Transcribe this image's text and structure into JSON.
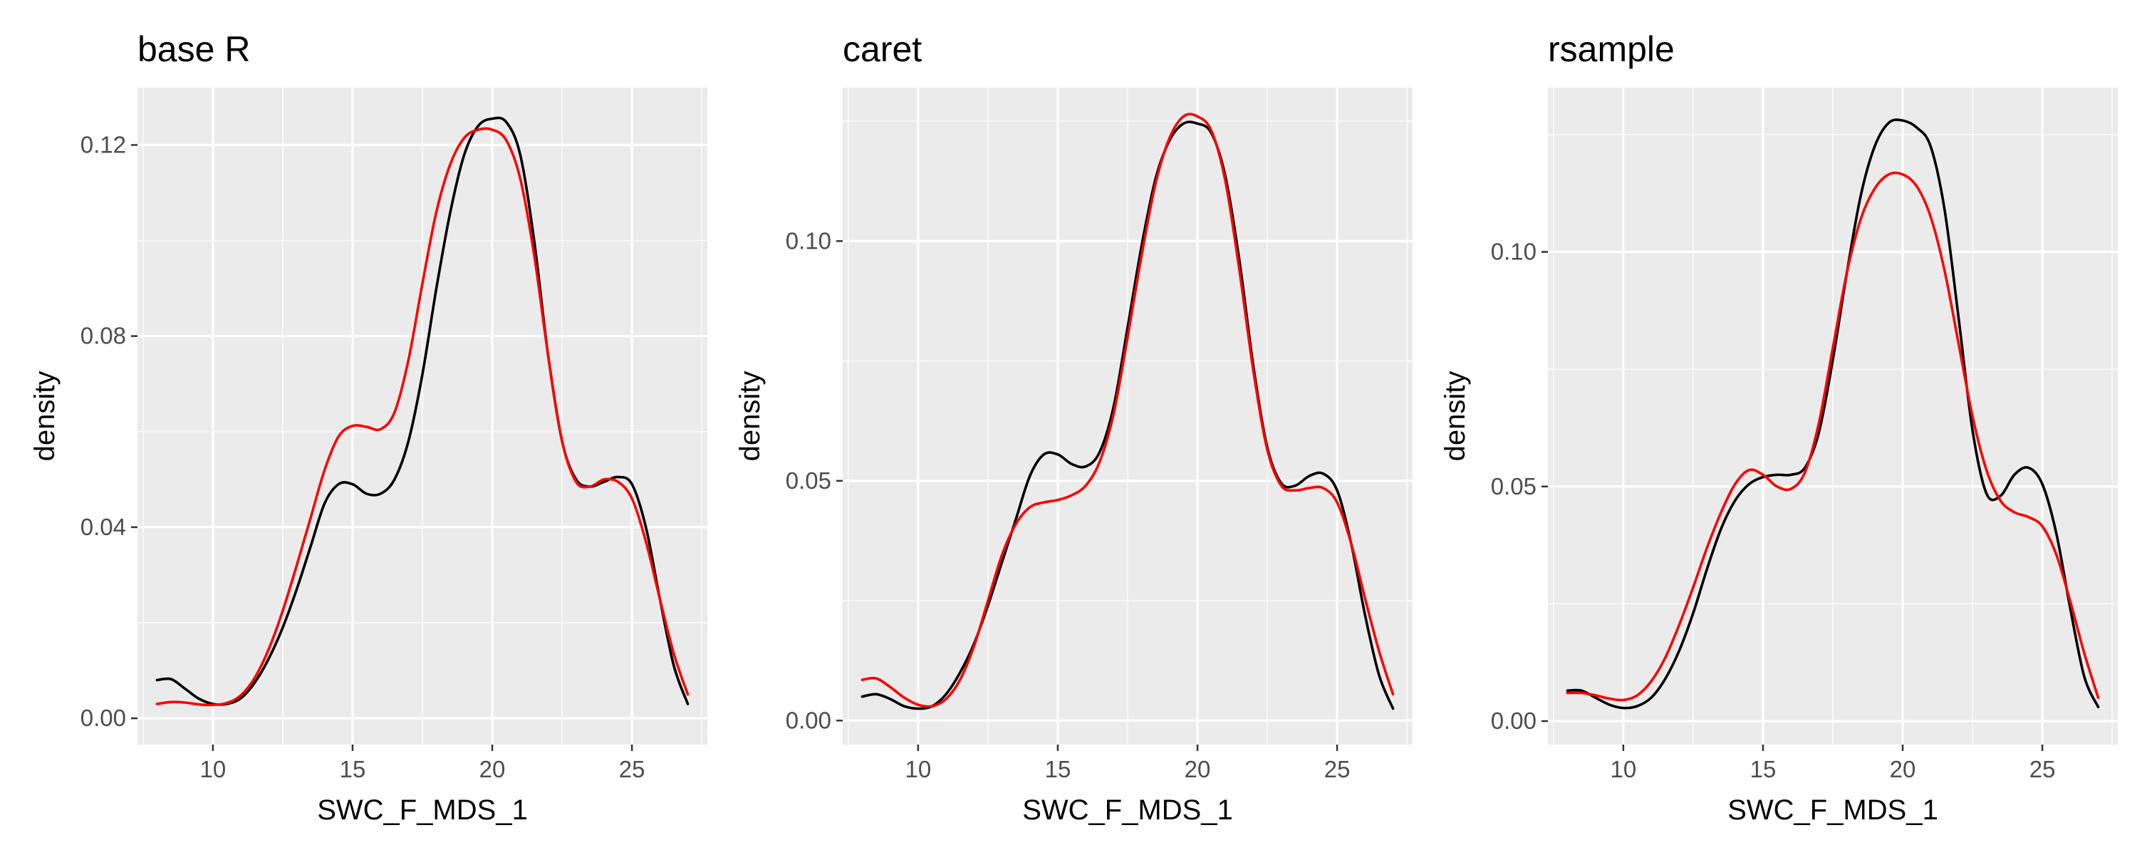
{
  "colors": {
    "panel_bg": "#ebebeb",
    "grid": "#ffffff",
    "series_a": "#000000",
    "series_b": "#ff0000"
  },
  "chart_data": [
    {
      "type": "line",
      "title": "base R",
      "xlabel": "SWC_F_MDS_1",
      "ylabel": "density",
      "xlim": [
        7.3,
        27.7
      ],
      "ylim": [
        -0.0055,
        0.132
      ],
      "x_ticks": [
        10,
        15,
        20,
        25
      ],
      "x_tick_labels": [
        "10",
        "15",
        "20",
        "25"
      ],
      "y_ticks": [
        0,
        0.04,
        0.08,
        0.12
      ],
      "y_tick_labels": [
        "0.00",
        "0.04",
        "0.08",
        "0.12"
      ],
      "grid": true,
      "legend": "none",
      "series": [
        {
          "color": "#000000",
          "points": [
            [
              8,
              0.008
            ],
            [
              8.5,
              0.0082
            ],
            [
              9,
              0.0062
            ],
            [
              9.5,
              0.0041
            ],
            [
              10,
              0.003
            ],
            [
              10.5,
              0.003
            ],
            [
              11,
              0.0042
            ],
            [
              11.5,
              0.0075
            ],
            [
              12,
              0.0125
            ],
            [
              12.5,
              0.019
            ],
            [
              13,
              0.027
            ],
            [
              13.5,
              0.036
            ],
            [
              14,
              0.045
            ],
            [
              14.5,
              0.049
            ],
            [
              15,
              0.049
            ],
            [
              15.5,
              0.047
            ],
            [
              16,
              0.047
            ],
            [
              16.5,
              0.05
            ],
            [
              17,
              0.058
            ],
            [
              17.5,
              0.072
            ],
            [
              18,
              0.09
            ],
            [
              18.5,
              0.106
            ],
            [
              19,
              0.118
            ],
            [
              19.5,
              0.124
            ],
            [
              20,
              0.1255
            ],
            [
              20.5,
              0.1248
            ],
            [
              21,
              0.118
            ],
            [
              21.5,
              0.1
            ],
            [
              22,
              0.076
            ],
            [
              22.5,
              0.058
            ],
            [
              23,
              0.05
            ],
            [
              23.5,
              0.0485
            ],
            [
              24,
              0.0495
            ],
            [
              24.5,
              0.0505
            ],
            [
              25,
              0.049
            ],
            [
              25.5,
              0.04
            ],
            [
              26,
              0.025
            ],
            [
              26.5,
              0.011
            ],
            [
              27,
              0.003
            ]
          ]
        },
        {
          "color": "#ff0000",
          "points": [
            [
              8,
              0.003
            ],
            [
              8.5,
              0.0034
            ],
            [
              9,
              0.0033
            ],
            [
              9.5,
              0.0029
            ],
            [
              10,
              0.0028
            ],
            [
              10.5,
              0.0032
            ],
            [
              11,
              0.0048
            ],
            [
              11.5,
              0.0085
            ],
            [
              12,
              0.0145
            ],
            [
              12.5,
              0.0225
            ],
            [
              13,
              0.032
            ],
            [
              13.5,
              0.042
            ],
            [
              14,
              0.052
            ],
            [
              14.5,
              0.059
            ],
            [
              15,
              0.0612
            ],
            [
              15.5,
              0.061
            ],
            [
              16,
              0.0605
            ],
            [
              16.5,
              0.064
            ],
            [
              17,
              0.075
            ],
            [
              17.5,
              0.091
            ],
            [
              18,
              0.106
            ],
            [
              18.5,
              0.116
            ],
            [
              19,
              0.1215
            ],
            [
              19.5,
              0.1232
            ],
            [
              20,
              0.1232
            ],
            [
              20.5,
              0.121
            ],
            [
              21,
              0.113
            ],
            [
              21.5,
              0.097
            ],
            [
              22,
              0.076
            ],
            [
              22.5,
              0.058
            ],
            [
              23,
              0.0495
            ],
            [
              23.5,
              0.0485
            ],
            [
              24,
              0.05
            ],
            [
              24.5,
              0.0495
            ],
            [
              25,
              0.046
            ],
            [
              25.5,
              0.037
            ],
            [
              26,
              0.025
            ],
            [
              26.5,
              0.0135
            ],
            [
              27,
              0.005
            ]
          ]
        }
      ]
    },
    {
      "type": "line",
      "title": "caret",
      "xlabel": "SWC_F_MDS_1",
      "ylabel": "density",
      "xlim": [
        7.3,
        27.7
      ],
      "ylim": [
        -0.005,
        0.132
      ],
      "x_ticks": [
        10,
        15,
        20,
        25
      ],
      "x_tick_labels": [
        "10",
        "15",
        "20",
        "25"
      ],
      "y_ticks": [
        0,
        0.05,
        0.1
      ],
      "y_tick_labels": [
        "0.00",
        "0.05",
        "0.10"
      ],
      "grid": true,
      "legend": "none",
      "series": [
        {
          "color": "#000000",
          "points": [
            [
              8,
              0.005
            ],
            [
              8.5,
              0.0055
            ],
            [
              9,
              0.0045
            ],
            [
              9.5,
              0.003
            ],
            [
              10,
              0.0025
            ],
            [
              10.5,
              0.003
            ],
            [
              11,
              0.0055
            ],
            [
              11.5,
              0.01
            ],
            [
              12,
              0.016
            ],
            [
              12.5,
              0.024
            ],
            [
              13,
              0.033
            ],
            [
              13.5,
              0.042
            ],
            [
              14,
              0.051
            ],
            [
              14.5,
              0.0555
            ],
            [
              15,
              0.0555
            ],
            [
              15.5,
              0.0535
            ],
            [
              16,
              0.053
            ],
            [
              16.5,
              0.056
            ],
            [
              17,
              0.0655
            ],
            [
              17.5,
              0.082
            ],
            [
              18,
              0.099
            ],
            [
              18.5,
              0.113
            ],
            [
              19,
              0.121
            ],
            [
              19.5,
              0.1245
            ],
            [
              20,
              0.1245
            ],
            [
              20.5,
              0.1225
            ],
            [
              21,
              0.1135
            ],
            [
              21.5,
              0.096
            ],
            [
              22,
              0.074
            ],
            [
              22.5,
              0.057
            ],
            [
              23,
              0.0495
            ],
            [
              23.5,
              0.049
            ],
            [
              24,
              0.051
            ],
            [
              24.5,
              0.0515
            ],
            [
              25,
              0.048
            ],
            [
              25.5,
              0.037
            ],
            [
              26,
              0.022
            ],
            [
              26.5,
              0.0095
            ],
            [
              27,
              0.0025
            ]
          ]
        },
        {
          "color": "#ff0000",
          "points": [
            [
              8,
              0.0085
            ],
            [
              8.5,
              0.0088
            ],
            [
              9,
              0.007
            ],
            [
              9.5,
              0.0048
            ],
            [
              10,
              0.0033
            ],
            [
              10.5,
              0.003
            ],
            [
              11,
              0.0045
            ],
            [
              11.5,
              0.0085
            ],
            [
              12,
              0.0155
            ],
            [
              12.5,
              0.025
            ],
            [
              13,
              0.0345
            ],
            [
              13.5,
              0.041
            ],
            [
              14,
              0.0445
            ],
            [
              14.5,
              0.0455
            ],
            [
              15,
              0.046
            ],
            [
              15.5,
              0.047
            ],
            [
              16,
              0.049
            ],
            [
              16.5,
              0.054
            ],
            [
              17,
              0.064
            ],
            [
              17.5,
              0.08
            ],
            [
              18,
              0.097
            ],
            [
              18.5,
              0.112
            ],
            [
              19,
              0.1215
            ],
            [
              19.5,
              0.126
            ],
            [
              20,
              0.126
            ],
            [
              20.5,
              0.123
            ],
            [
              21,
              0.1125
            ],
            [
              21.5,
              0.094
            ],
            [
              22,
              0.073
            ],
            [
              22.5,
              0.0565
            ],
            [
              23,
              0.049
            ],
            [
              23.5,
              0.048
            ],
            [
              24,
              0.0485
            ],
            [
              24.5,
              0.0485
            ],
            [
              25,
              0.0455
            ],
            [
              25.5,
              0.037
            ],
            [
              26,
              0.0255
            ],
            [
              26.5,
              0.0145
            ],
            [
              27,
              0.0055
            ]
          ]
        }
      ]
    },
    {
      "type": "line",
      "title": "rsample",
      "xlabel": "SWC_F_MDS_1",
      "ylabel": "density",
      "xlim": [
        7.3,
        27.7
      ],
      "ylim": [
        -0.005,
        0.135
      ],
      "x_ticks": [
        10,
        15,
        20,
        25
      ],
      "x_tick_labels": [
        "10",
        "15",
        "20",
        "25"
      ],
      "y_ticks": [
        0,
        0.05,
        0.1
      ],
      "y_tick_labels": [
        "0.00",
        "0.05",
        "0.10"
      ],
      "grid": true,
      "legend": "none",
      "series": [
        {
          "color": "#000000",
          "points": [
            [
              8,
              0.0065
            ],
            [
              8.5,
              0.0065
            ],
            [
              9,
              0.005
            ],
            [
              9.5,
              0.0035
            ],
            [
              10,
              0.0028
            ],
            [
              10.5,
              0.0032
            ],
            [
              11,
              0.005
            ],
            [
              11.5,
              0.009
            ],
            [
              12,
              0.015
            ],
            [
              12.5,
              0.023
            ],
            [
              13,
              0.0325
            ],
            [
              13.5,
              0.041
            ],
            [
              14,
              0.047
            ],
            [
              14.5,
              0.0505
            ],
            [
              15,
              0.052
            ],
            [
              15.5,
              0.0525
            ],
            [
              16,
              0.0525
            ],
            [
              16.5,
              0.054
            ],
            [
              17,
              0.0615
            ],
            [
              17.5,
              0.077
            ],
            [
              18,
              0.0955
            ],
            [
              18.5,
              0.112
            ],
            [
              19,
              0.1225
            ],
            [
              19.5,
              0.1275
            ],
            [
              20,
              0.128
            ],
            [
              20.5,
              0.1265
            ],
            [
              21,
              0.1225
            ],
            [
              21.5,
              0.109
            ],
            [
              22,
              0.086
            ],
            [
              22.5,
              0.062
            ],
            [
              23,
              0.0485
            ],
            [
              23.5,
              0.048
            ],
            [
              24,
              0.0525
            ],
            [
              24.5,
              0.054
            ],
            [
              25,
              0.0505
            ],
            [
              25.5,
              0.04
            ],
            [
              26,
              0.024
            ],
            [
              26.5,
              0.0095
            ],
            [
              27,
              0.003
            ]
          ]
        },
        {
          "color": "#ff0000",
          "points": [
            [
              8,
              0.006
            ],
            [
              8.5,
              0.006
            ],
            [
              9,
              0.0055
            ],
            [
              9.5,
              0.0048
            ],
            [
              10,
              0.0045
            ],
            [
              10.5,
              0.0055
            ],
            [
              11,
              0.0085
            ],
            [
              11.5,
              0.0135
            ],
            [
              12,
              0.0205
            ],
            [
              12.5,
              0.0285
            ],
            [
              13,
              0.037
            ],
            [
              13.5,
              0.0445
            ],
            [
              14,
              0.0505
            ],
            [
              14.5,
              0.0535
            ],
            [
              15,
              0.0525
            ],
            [
              15.5,
              0.05
            ],
            [
              16,
              0.0495
            ],
            [
              16.5,
              0.053
            ],
            [
              17,
              0.0635
            ],
            [
              17.5,
              0.0795
            ],
            [
              18,
              0.0955
            ],
            [
              18.5,
              0.107
            ],
            [
              19,
              0.1135
            ],
            [
              19.5,
              0.1165
            ],
            [
              20,
              0.1165
            ],
            [
              20.5,
              0.114
            ],
            [
              21,
              0.1075
            ],
            [
              21.5,
              0.096
            ],
            [
              22,
              0.0805
            ],
            [
              22.5,
              0.065
            ],
            [
              23,
              0.0535
            ],
            [
              23.5,
              0.047
            ],
            [
              24,
              0.0445
            ],
            [
              24.5,
              0.0435
            ],
            [
              25,
              0.0415
            ],
            [
              25.5,
              0.0355
            ],
            [
              26,
              0.0255
            ],
            [
              26.5,
              0.0145
            ],
            [
              27,
              0.005
            ]
          ]
        }
      ]
    }
  ]
}
